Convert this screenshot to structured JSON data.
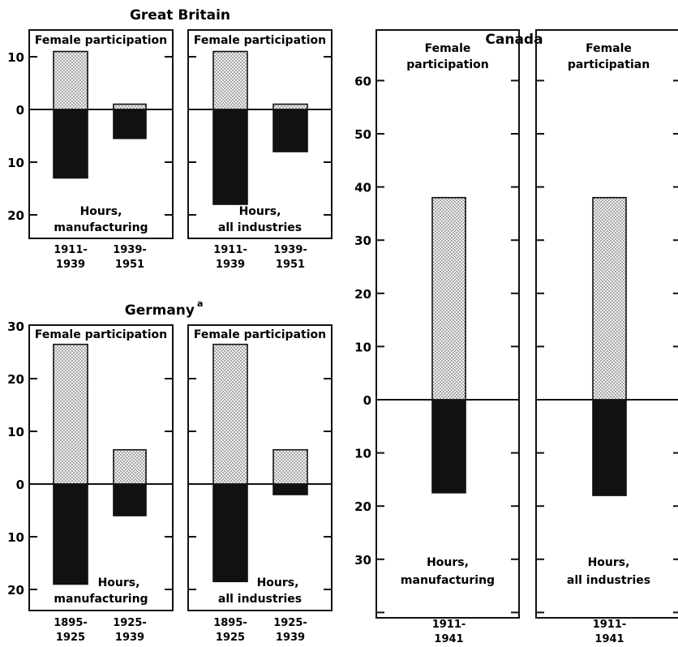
{
  "headings": {
    "gb": "Great Britain",
    "de": "Germany",
    "de_sup": "a",
    "ca": "Canada"
  },
  "chart_data": [
    {
      "type": "bar",
      "country": "Great Britain",
      "top_label": "Female participation",
      "bottom_label": [
        "Hours,",
        "manufacturing"
      ],
      "categories": [
        [
          "1911-",
          "1939"
        ],
        [
          "1939-",
          "1951"
        ]
      ],
      "series": [
        {
          "name": "Female participation",
          "values": [
            11,
            1
          ]
        },
        {
          "name": "Hours",
          "values": [
            -13,
            -5.5
          ]
        }
      ],
      "yticks": [
        {
          "v": 10,
          "label": "10"
        },
        {
          "v": 0,
          "label": "0"
        },
        {
          "v": -10,
          "label": "10"
        },
        {
          "v": -20,
          "label": "20"
        }
      ],
      "ylim": [
        -25,
        15
      ]
    },
    {
      "type": "bar",
      "country": "Great Britain",
      "top_label": "Female participation",
      "bottom_label": [
        "Hours,",
        "all industries"
      ],
      "categories": [
        [
          "1911-",
          "1939"
        ],
        [
          "1939-",
          "1951"
        ]
      ],
      "series": [
        {
          "name": "Female participation",
          "values": [
            11,
            1
          ]
        },
        {
          "name": "Hours",
          "values": [
            -18,
            -8
          ]
        }
      ],
      "ylim": [
        -25,
        15
      ]
    },
    {
      "type": "bar",
      "country": "Germany",
      "top_label": "Female participation",
      "bottom_label": [
        "Hours,",
        "manufacturing"
      ],
      "categories": [
        [
          "1895-",
          "1925"
        ],
        [
          "1925-",
          "1939"
        ]
      ],
      "series": [
        {
          "name": "Female participation",
          "values": [
            26.5,
            6.5
          ]
        },
        {
          "name": "Hours",
          "values": [
            -19,
            -6
          ]
        }
      ],
      "yticks": [
        {
          "v": 30,
          "label": "30"
        },
        {
          "v": 20,
          "label": "20"
        },
        {
          "v": 10,
          "label": "10"
        },
        {
          "v": 0,
          "label": "0"
        },
        {
          "v": -10,
          "label": "10"
        },
        {
          "v": -20,
          "label": "20"
        }
      ],
      "ylim": [
        -24,
        30
      ]
    },
    {
      "type": "bar",
      "country": "Germany",
      "top_label": "Female participation",
      "bottom_label": [
        "Hours,",
        "all industries"
      ],
      "categories": [
        [
          "1895-",
          "1925"
        ],
        [
          "1925-",
          "1939"
        ]
      ],
      "series": [
        {
          "name": "Female participation",
          "values": [
            26.5,
            6.5
          ]
        },
        {
          "name": "Hours",
          "values": [
            -18.5,
            -2
          ]
        }
      ],
      "ylim": [
        -24,
        30
      ]
    },
    {
      "type": "bar",
      "country": "Canada",
      "top_label": [
        "Female",
        "participation"
      ],
      "bottom_label": [
        "Hours,",
        "manufacturing"
      ],
      "categories": [
        [
          "1911-",
          "1941"
        ]
      ],
      "series": [
        {
          "name": "Female participation",
          "values": [
            38
          ]
        },
        {
          "name": "Hours",
          "values": [
            -17.5
          ]
        }
      ],
      "yticks": [
        {
          "v": 60,
          "label": "60"
        },
        {
          "v": 50,
          "label": "50"
        },
        {
          "v": 40,
          "label": "40"
        },
        {
          "v": 30,
          "label": "30"
        },
        {
          "v": 20,
          "label": "20"
        },
        {
          "v": 10,
          "label": "10"
        },
        {
          "v": 0,
          "label": "0"
        },
        {
          "v": -10,
          "label": "10"
        },
        {
          "v": -20,
          "label": "20"
        },
        {
          "v": -30,
          "label": "30"
        }
      ],
      "ylim": [
        -41,
        69
      ]
    },
    {
      "type": "bar",
      "country": "Canada",
      "top_label": [
        "Female",
        "participatian"
      ],
      "bottom_label": [
        "Hours,",
        "all industries"
      ],
      "categories": [
        [
          "1911-",
          "1941"
        ]
      ],
      "series": [
        {
          "name": "Female participation",
          "values": [
            38
          ]
        },
        {
          "name": "Hours",
          "values": [
            -18
          ]
        }
      ],
      "ylim": [
        -41,
        69
      ]
    }
  ]
}
